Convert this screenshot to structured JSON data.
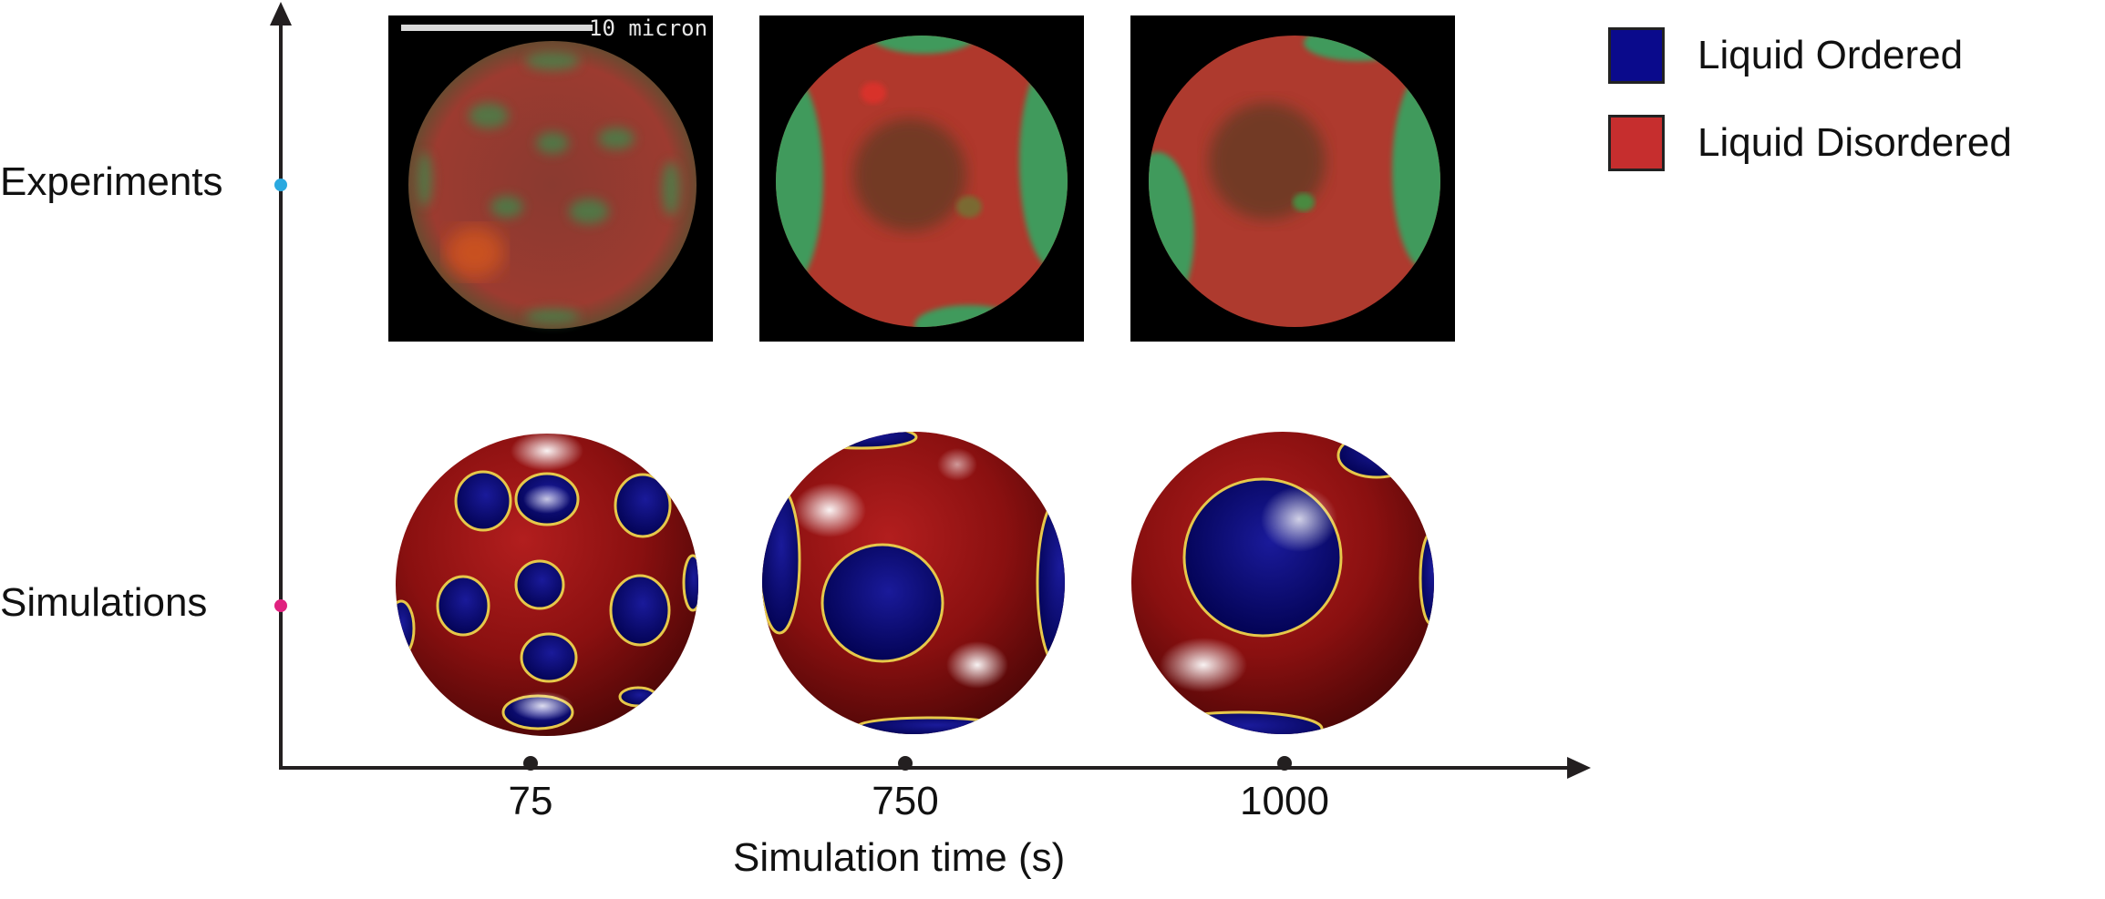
{
  "y_axis": {
    "rows": [
      {
        "label": "Experiments",
        "marker_color": "#2aa9e0"
      },
      {
        "label": "Simulations",
        "marker_color": "#e0217f"
      }
    ]
  },
  "x_axis": {
    "label": "Simulation time (s)",
    "ticks": [
      "75",
      "750",
      "1000"
    ]
  },
  "scale_bar": {
    "text": "10 micron"
  },
  "legend": {
    "items": [
      {
        "label": "Liquid Ordered",
        "color": "#0a0a8c"
      },
      {
        "label": "Liquid Disordered",
        "color": "#c62e2e"
      }
    ]
  },
  "colors": {
    "axis": "#231f20",
    "micro_red": "#b03a2e",
    "micro_green": "#3a9a5a",
    "sim_red": "#8a1010",
    "sim_blue": "#03035a"
  }
}
